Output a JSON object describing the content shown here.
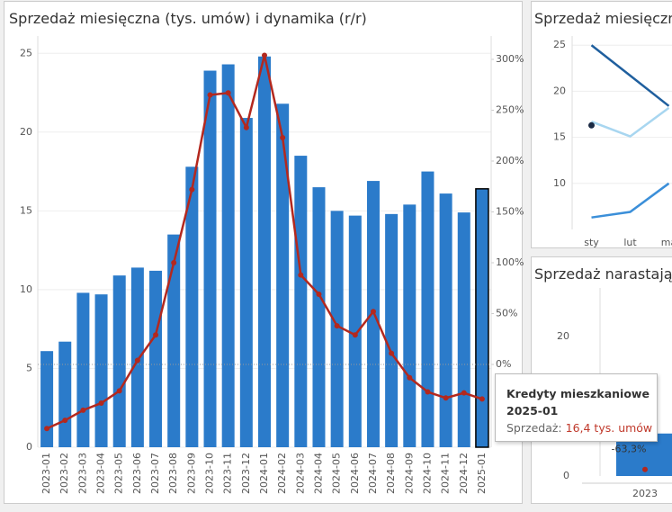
{
  "chart_data": [
    {
      "type": "combo",
      "title": "Sprzedaż miesięczna (tys. umów) i dynamika (r/r)",
      "categories": [
        "2023-01",
        "2023-02",
        "2023-03",
        "2023-04",
        "2023-05",
        "2023-06",
        "2023-07",
        "2023-08",
        "2023-09",
        "2023-10",
        "2023-11",
        "2023-12",
        "2024-01",
        "2024-02",
        "2024-03",
        "2024-04",
        "2024-05",
        "2024-06",
        "2024-07",
        "2024-08",
        "2024-09",
        "2024-10",
        "2024-11",
        "2024-12",
        "2025-01"
      ],
      "series": [
        {
          "type": "bar",
          "color": "#2b7bca",
          "values": [
            6.1,
            6.7,
            9.8,
            9.7,
            10.9,
            11.4,
            11.2,
            13.5,
            17.8,
            23.9,
            24.3,
            20.9,
            24.8,
            21.8,
            18.5,
            16.5,
            15.0,
            14.7,
            16.9,
            14.8,
            15.4,
            17.5,
            16.1,
            14.9,
            16.4
          ]
        },
        {
          "type": "line",
          "axis": "y2",
          "markers": true,
          "color": "#b3281e",
          "values": [
            -63,
            -55,
            -45,
            -38,
            -26,
            4,
            29,
            100,
            172,
            265,
            267,
            233,
            304,
            223,
            88,
            69,
            38,
            29,
            52,
            11,
            -13,
            -27,
            -33,
            -28,
            -34
          ]
        }
      ],
      "ylim": [
        0,
        26.1
      ],
      "yticks": [
        0,
        5,
        10,
        15,
        20,
        25
      ],
      "y2lim": [
        -81.4,
        323
      ],
      "y2ticks": [
        {
          "value": 0,
          "label": "0%"
        },
        {
          "value": 50,
          "label": "50%"
        },
        {
          "value": 100,
          "label": "100%"
        },
        {
          "value": 150,
          "label": "150%"
        },
        {
          "value": 200,
          "label": "200%"
        },
        {
          "value": 250,
          "label": "250%"
        },
        {
          "value": 300,
          "label": "300%"
        }
      ],
      "grid": true,
      "zero_line": true,
      "rotate_x_labels": true
    },
    {
      "type": "combo",
      "title": "Sprzedaż miesięczna",
      "categories": [
        "sty",
        "lut",
        "ma"
      ],
      "series": [
        {
          "type": "line",
          "color": "#1f5f9e",
          "values": [
            25.0,
            21.7,
            18.4
          ]
        },
        {
          "type": "line",
          "color": "#a8d6f0",
          "values": [
            16.7,
            15.1,
            18.2
          ]
        },
        {
          "type": "line",
          "color": "#3b8fd9",
          "values": [
            6.3,
            6.9,
            10.0
          ]
        },
        {
          "type": "point",
          "color": "#1c2b45",
          "values": [
            16.3,
            null,
            null
          ]
        }
      ],
      "ylim": [
        5,
        26
      ],
      "yticks": [
        10,
        15,
        20,
        25
      ],
      "grid": true
    },
    {
      "type": "combo",
      "title": "Sprzedaż narastając",
      "categories": [
        "2023"
      ],
      "series": [
        {
          "type": "bar",
          "color": "#2b7bca",
          "values": [
            6.1
          ]
        },
        {
          "type": "line",
          "axis": "y2",
          "markers": true,
          "color": "#b3281e",
          "values": [
            -63.3
          ],
          "value_labels": [
            "-63,3%"
          ]
        }
      ],
      "ylim": [
        0,
        27
      ],
      "yticks": [
        0,
        20
      ],
      "y2lim": [
        -80,
        400
      ],
      "grid": false
    }
  ],
  "tooltip": {
    "title": "Kredyty mieszkaniowe",
    "period": "2025-01",
    "label": "Sprzedaż:",
    "value": "16,4 tys. umów"
  }
}
